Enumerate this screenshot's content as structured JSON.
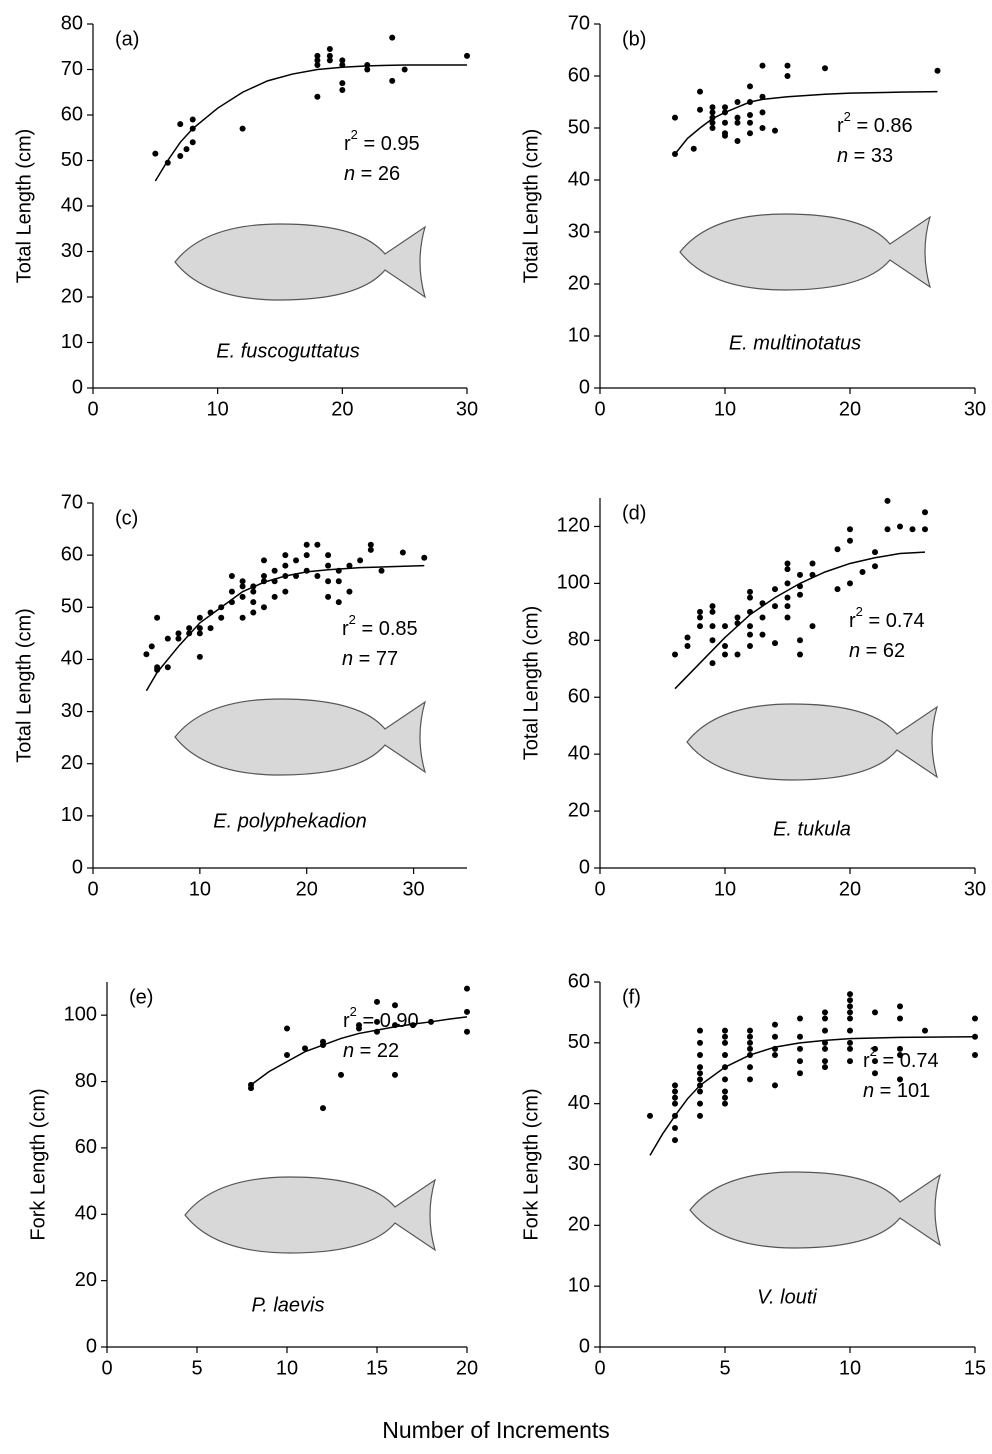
{
  "xlabel": "Number of Increments",
  "chart_data": [
    {
      "type": "scatter",
      "panel": "(a)",
      "ylabel": "Total Length (cm)",
      "species": "E. fuscoguttatus",
      "r2": {
        "symbol": "r",
        "exponent": "2",
        "text": " = 0.95"
      },
      "n": {
        "symbol": "n",
        "text": " = 26"
      },
      "x": [
        5,
        6,
        7,
        7,
        7.5,
        8,
        8,
        8,
        12,
        18,
        18,
        18,
        18,
        19,
        19,
        19,
        20,
        20,
        20,
        20,
        22,
        22,
        24,
        24,
        25,
        30
      ],
      "values": [
        51.5,
        49.5,
        51,
        58,
        52.5,
        54,
        57,
        59,
        57,
        64,
        71,
        72,
        73,
        72,
        73,
        74.5,
        65.5,
        67,
        71,
        72,
        70,
        71,
        67.5,
        77,
        70,
        73
      ],
      "fit_x": [
        5,
        6,
        7,
        8,
        10,
        12,
        14,
        16,
        18,
        20,
        22,
        25,
        30
      ],
      "fit_values": [
        45.5,
        50,
        54,
        57,
        61.5,
        65,
        67.5,
        69,
        70,
        70.5,
        70.8,
        71,
        71
      ],
      "color": "#000000",
      "xlim": [
        0,
        30
      ],
      "ylim": [
        0,
        80
      ],
      "xticks": [
        0,
        10,
        20,
        30
      ],
      "yticks": [
        0,
        10,
        20,
        30,
        40,
        50,
        60,
        70,
        80
      ]
    },
    {
      "type": "scatter",
      "panel": "(b)",
      "ylabel": "Total Length (cm)",
      "species": "E. multinotatus",
      "r2": {
        "symbol": "r",
        "exponent": "2",
        "text": " = 0.86"
      },
      "n": {
        "symbol": "n",
        "text": " = 33"
      },
      "x": [
        6,
        6,
        7.5,
        8,
        8,
        9,
        9,
        9,
        9,
        9,
        10,
        10,
        10,
        10,
        10,
        11,
        11,
        11,
        11,
        12,
        12,
        12,
        12,
        12,
        13,
        13,
        13,
        13,
        14,
        15,
        15,
        18,
        27
      ],
      "values": [
        45,
        52,
        46,
        53.5,
        57,
        50,
        51,
        52,
        53,
        54,
        51,
        53,
        54,
        48.5,
        49,
        51,
        52,
        47.5,
        55,
        51,
        55,
        58,
        52.5,
        49,
        50,
        53,
        56,
        62,
        49.5,
        60,
        62,
        61.5,
        61
      ],
      "fit_x": [
        6,
        7,
        8,
        9,
        10,
        11,
        12,
        13,
        15,
        18,
        20,
        24,
        27
      ],
      "fit_values": [
        45,
        48,
        50,
        51.8,
        53,
        54,
        55,
        55.5,
        56,
        56.5,
        56.7,
        56.9,
        57
      ],
      "color": "#000000",
      "xlim": [
        0,
        30
      ],
      "ylim": [
        0,
        70
      ],
      "xticks": [
        0,
        10,
        20,
        30
      ],
      "yticks": [
        0,
        10,
        20,
        30,
        40,
        50,
        60,
        70
      ]
    },
    {
      "type": "scatter",
      "panel": "(c)",
      "ylabel": "Total Length (cm)",
      "species": "E. polyphekadion",
      "r2": {
        "symbol": "r",
        "exponent": "2",
        "text": " = 0.85"
      },
      "n": {
        "symbol": "n",
        "text": " = 77"
      },
      "x": [
        5,
        5.5,
        6,
        6,
        6,
        7,
        7,
        8,
        8,
        9,
        9,
        10,
        10,
        10,
        10,
        11,
        11,
        12,
        12,
        13,
        13,
        13,
        14,
        14,
        14,
        14,
        15,
        15,
        15,
        15,
        16,
        16,
        16,
        16,
        17,
        17,
        17,
        18,
        18,
        18,
        18,
        19,
        19,
        20,
        20,
        20,
        21,
        21,
        22,
        22,
        22,
        22,
        23,
        23,
        23,
        24,
        24,
        25,
        26,
        26,
        27,
        29,
        31
      ],
      "values": [
        41,
        42.5,
        48,
        38,
        38.5,
        38.5,
        44,
        44,
        45,
        45,
        46,
        45,
        46,
        48,
        40.5,
        46,
        49,
        48,
        50,
        51,
        53,
        56,
        48,
        52,
        54,
        55,
        49,
        51,
        53,
        54,
        50,
        55,
        56,
        59,
        52,
        55,
        57,
        53,
        56,
        58,
        60,
        56,
        59,
        57,
        60,
        62,
        56,
        62,
        52,
        55,
        58,
        60,
        51,
        55,
        57,
        53,
        58,
        59,
        61,
        62,
        57,
        60.5,
        59.5
      ],
      "fit_x": [
        5,
        6,
        7,
        8,
        10,
        12,
        14,
        16,
        18,
        20,
        22,
        25,
        28,
        31
      ],
      "fit_values": [
        34,
        37.5,
        40,
        42.5,
        47,
        50,
        53,
        54.8,
        56,
        56.8,
        57.2,
        57.6,
        57.8,
        58
      ],
      "color": "#000000",
      "xlim": [
        0,
        35
      ],
      "ylim": [
        0,
        70
      ],
      "xticks": [
        0,
        10,
        20,
        30
      ],
      "yticks": [
        0,
        10,
        20,
        30,
        40,
        50,
        60,
        70
      ]
    },
    {
      "type": "scatter",
      "panel": "(d)",
      "ylabel": "Total Length (cm)",
      "species": "E. tukula",
      "r2": {
        "symbol": "r",
        "exponent": "2",
        "text": " = 0.74"
      },
      "n": {
        "symbol": "n",
        "text": " = 62"
      },
      "x": [
        6,
        7,
        7,
        8,
        8,
        8,
        9,
        9,
        9,
        9,
        9,
        10,
        10,
        10,
        11,
        11,
        11,
        12,
        12,
        12,
        12,
        12,
        12,
        13,
        13,
        13,
        14,
        14,
        14,
        15,
        15,
        15,
        15,
        15,
        15,
        16,
        16,
        16,
        16,
        16,
        17,
        17,
        17,
        19,
        19,
        20,
        20,
        20,
        21,
        22,
        22,
        23,
        23,
        24,
        25,
        26,
        26
      ],
      "values": [
        75,
        78,
        81,
        85,
        88,
        90,
        72,
        80,
        85,
        90,
        92,
        75,
        78,
        85,
        75,
        86,
        88,
        78,
        82,
        85,
        90,
        95,
        97,
        82,
        88,
        93,
        79,
        92,
        98,
        88,
        92,
        95,
        100,
        105,
        107,
        75,
        80,
        96,
        99,
        103,
        85,
        103,
        107,
        98,
        112,
        100,
        115,
        119,
        104,
        106,
        111,
        119,
        129,
        120,
        119,
        119,
        125
      ],
      "fit_x": [
        6,
        8,
        10,
        12,
        14,
        16,
        18,
        20,
        22,
        24,
        26
      ],
      "fit_values": [
        63,
        72,
        81,
        89,
        95,
        100,
        104,
        107,
        109,
        110.5,
        111
      ],
      "color": "#000000",
      "xlim": [
        0,
        30
      ],
      "ylim": [
        0,
        130
      ],
      "xticks": [
        0,
        10,
        20,
        30
      ],
      "yticks": [
        0,
        20,
        40,
        60,
        80,
        100,
        120
      ]
    },
    {
      "type": "scatter",
      "panel": "(e)",
      "ylabel": "Fork Length (cm)",
      "species": "P. laevis",
      "r2": {
        "symbol": "r",
        "exponent": "2",
        "text": " = 0.90"
      },
      "n": {
        "symbol": "n",
        "text": " = 22"
      },
      "x": [
        8,
        8,
        10,
        10,
        12,
        12,
        12,
        13,
        14,
        15,
        15,
        15,
        16,
        16,
        16,
        18,
        20,
        20,
        20,
        11,
        14,
        17
      ],
      "values": [
        78,
        79,
        88,
        96,
        72,
        91,
        92,
        82,
        97,
        95,
        98,
        104,
        82,
        97,
        103,
        98,
        95,
        101,
        108,
        90,
        96,
        97
      ],
      "fit_x": [
        8,
        9,
        10,
        11,
        12,
        13,
        14,
        15,
        16,
        17,
        18,
        19,
        20
      ],
      "fit_values": [
        79,
        83,
        86,
        89,
        91,
        93,
        94.5,
        95.5,
        96.5,
        97.3,
        98,
        98.8,
        99.5
      ],
      "color": "#000000",
      "xlim": [
        0,
        20
      ],
      "ylim": [
        0,
        110
      ],
      "xticks": [
        0,
        5,
        10,
        15,
        20
      ],
      "yticks": [
        0,
        20,
        40,
        60,
        80,
        100
      ]
    },
    {
      "type": "scatter",
      "panel": "(f)",
      "ylabel": "Fork Length (cm)",
      "species": "V. louti",
      "r2": {
        "symbol": "r",
        "exponent": "2",
        "text": " = 0.74"
      },
      "n": {
        "symbol": "n",
        "text": " = 101"
      },
      "x": [
        2,
        3,
        3,
        3,
        3,
        3,
        3,
        3,
        4,
        4,
        4,
        4,
        4,
        4,
        4,
        4,
        4,
        4,
        5,
        5,
        5,
        5,
        5,
        5,
        5,
        5,
        5,
        6,
        6,
        6,
        6,
        6,
        6,
        6,
        7,
        7,
        7,
        7,
        7,
        8,
        8,
        8,
        8,
        8,
        9,
        9,
        9,
        9,
        9,
        9,
        9,
        10,
        10,
        10,
        10,
        10,
        10,
        10,
        10,
        10,
        11,
        11,
        11,
        11,
        12,
        12,
        12,
        12,
        12,
        13,
        15,
        15,
        15
      ],
      "values": [
        38,
        34,
        36,
        38,
        40,
        41,
        42,
        43,
        38,
        40,
        42,
        43,
        44,
        45,
        46,
        48,
        50,
        52,
        40,
        41,
        42,
        44,
        46,
        48,
        50,
        51,
        52,
        44,
        46,
        48,
        49,
        50,
        51,
        52,
        43,
        48,
        49,
        51,
        53,
        45,
        47,
        49,
        51,
        54,
        46,
        47,
        49,
        50,
        52,
        54,
        55,
        47,
        49,
        50,
        52,
        54,
        55,
        56,
        57,
        58,
        45,
        47,
        49,
        55,
        44,
        48,
        49,
        54,
        56,
        52,
        48,
        51,
        54
      ],
      "fit_x": [
        2,
        2.5,
        3,
        3.5,
        4,
        5,
        6,
        7,
        8,
        9,
        10,
        12,
        15
      ],
      "fit_values": [
        31.5,
        35,
        38,
        40.8,
        43,
        46,
        48,
        49.3,
        50,
        50.4,
        50.7,
        50.9,
        51
      ],
      "color": "#000000",
      "xlim": [
        0,
        15
      ],
      "ylim": [
        0,
        60
      ],
      "xticks": [
        0,
        5,
        10,
        15
      ],
      "yticks": [
        0,
        10,
        20,
        30,
        40,
        50,
        60
      ]
    }
  ]
}
